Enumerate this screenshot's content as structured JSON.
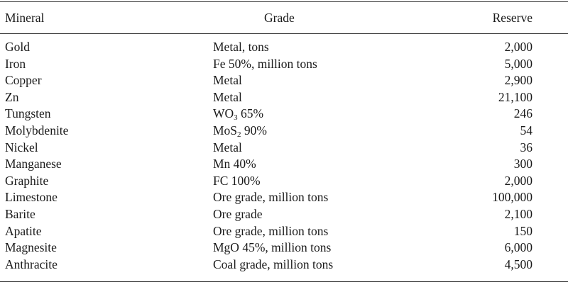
{
  "table": {
    "headers": {
      "mineral": "Mineral",
      "grade": "Grade",
      "reserve": "Reserve"
    },
    "rows": [
      {
        "mineral": "Gold",
        "grade": "Metal, tons",
        "reserve": "2,000"
      },
      {
        "mineral": "Iron",
        "grade": "Fe 50%, million tons",
        "reserve": "5,000"
      },
      {
        "mineral": "Copper",
        "grade": "Metal",
        "reserve": "2,900"
      },
      {
        "mineral": "Zn",
        "grade": "Metal",
        "reserve": "21,100"
      },
      {
        "mineral": "Tungsten",
        "grade_pre": "WO",
        "grade_sub": "3",
        "grade_post": " 65%",
        "reserve": "246"
      },
      {
        "mineral": "Molybdenite",
        "grade_pre": "MoS",
        "grade_sub": "2",
        "grade_post": " 90%",
        "reserve": "54"
      },
      {
        "mineral": "Nickel",
        "grade": "Metal",
        "reserve": "36"
      },
      {
        "mineral": "Manganese",
        "grade": "Mn 40%",
        "reserve": "300"
      },
      {
        "mineral": "Graphite",
        "grade": "FC 100%",
        "reserve": "2,000"
      },
      {
        "mineral": "Limestone",
        "grade": "Ore grade, million tons",
        "reserve": "100,000"
      },
      {
        "mineral": "Barite",
        "grade": "Ore grade",
        "reserve": "2,100"
      },
      {
        "mineral": "Apatite",
        "grade": "Ore grade, million tons",
        "reserve": "150"
      },
      {
        "mineral": "Magnesite",
        "grade": "MgO 45%, million tons",
        "reserve": "6,000"
      },
      {
        "mineral": "Anthracite",
        "grade": "Coal grade, million tons",
        "reserve": "4,500"
      }
    ]
  }
}
